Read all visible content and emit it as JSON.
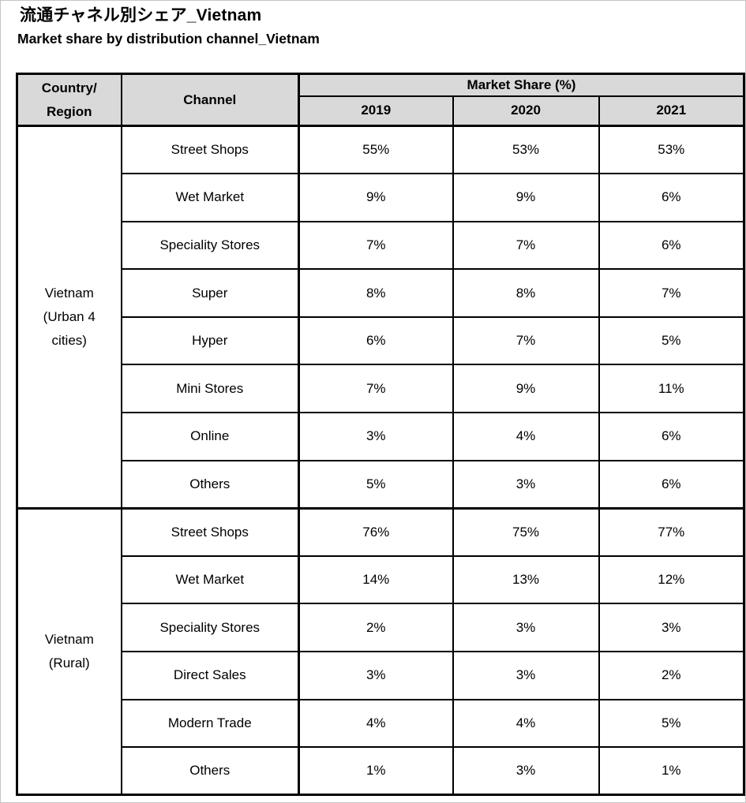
{
  "page": {
    "title": "流通チャネル別シェア_Vietnam",
    "subtitle": "Market share by distribution channel_Vietnam"
  },
  "colors": {
    "header_bg": "#d9d9d9",
    "border": "#000000",
    "text": "#000000",
    "page_edge": "#c6c6c6"
  },
  "table": {
    "headers": {
      "country_region": "Country/\nRegion",
      "channel": "Channel",
      "market_share": "Market Share (%)",
      "years": [
        "2019",
        "2020",
        "2021"
      ]
    },
    "groups": [
      {
        "region": "Vietnam\n(Urban 4\ncities)",
        "rows": [
          {
            "channel": "Street Shops",
            "values": [
              "55%",
              "53%",
              "53%"
            ]
          },
          {
            "channel": "Wet Market",
            "values": [
              "9%",
              "9%",
              "6%"
            ]
          },
          {
            "channel": "Speciality Stores",
            "values": [
              "7%",
              "7%",
              "6%"
            ]
          },
          {
            "channel": "Super",
            "values": [
              "8%",
              "8%",
              "7%"
            ]
          },
          {
            "channel": "Hyper",
            "values": [
              "6%",
              "7%",
              "5%"
            ]
          },
          {
            "channel": "Mini Stores",
            "values": [
              "7%",
              "9%",
              "11%"
            ]
          },
          {
            "channel": "Online",
            "values": [
              "3%",
              "4%",
              "6%"
            ]
          },
          {
            "channel": "Others",
            "values": [
              "5%",
              "3%",
              "6%"
            ]
          }
        ]
      },
      {
        "region": "Vietnam\n(Rural)",
        "rows": [
          {
            "channel": "Street Shops",
            "values": [
              "76%",
              "75%",
              "77%"
            ]
          },
          {
            "channel": "Wet Market",
            "values": [
              "14%",
              "13%",
              "12%"
            ]
          },
          {
            "channel": "Speciality Stores",
            "values": [
              "2%",
              "3%",
              "3%"
            ]
          },
          {
            "channel": "Direct Sales",
            "values": [
              "3%",
              "3%",
              "2%"
            ]
          },
          {
            "channel": "Modern Trade",
            "values": [
              "4%",
              "4%",
              "5%"
            ]
          },
          {
            "channel": "Others",
            "values": [
              "1%",
              "3%",
              "1%"
            ]
          }
        ]
      }
    ]
  }
}
